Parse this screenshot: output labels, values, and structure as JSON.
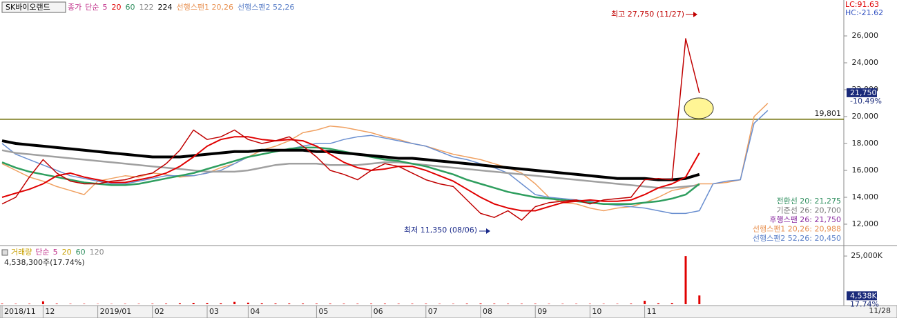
{
  "chart_data": [
    {
      "type": "line",
      "stock_name": "SK바이오랜드",
      "legend_prefix": "단순",
      "legend_extra_ma": "5",
      "categories": [
        "2018/11",
        null,
        null,
        "12",
        null,
        null,
        null,
        "2019/01",
        null,
        null,
        null,
        "02",
        null,
        null,
        null,
        "03",
        null,
        null,
        "04",
        null,
        null,
        null,
        null,
        "05",
        null,
        null,
        null,
        "06",
        null,
        null,
        null,
        "07",
        null,
        null,
        null,
        "08",
        null,
        null,
        null,
        "09",
        null,
        null,
        null,
        "10",
        null,
        null,
        null,
        "11",
        null,
        null,
        null,
        null,
        null,
        null,
        null,
        null,
        null
      ],
      "series": [
        {
          "name": "종가",
          "color": "#c00000",
          "values": [
            13500,
            14000,
            15500,
            16800,
            15800,
            15200,
            15000,
            15000,
            15200,
            15300,
            15600,
            15800,
            16500,
            17500,
            19000,
            18300,
            18500,
            19000,
            18300,
            18000,
            18200,
            18500,
            17800,
            17000,
            16000,
            15700,
            15300,
            16000,
            16500,
            16300,
            15800,
            15300,
            15000,
            14800,
            13800,
            12800,
            12500,
            13000,
            12300,
            13300,
            13600,
            13700,
            13800,
            13500,
            13800,
            13900,
            14000,
            15300,
            15400,
            15300,
            25800,
            21750,
            null,
            null,
            null,
            null,
            null
          ]
        },
        {
          "name": "20",
          "color": "#e00000",
          "values": [
            14000,
            14300,
            14600,
            15000,
            15600,
            15800,
            15500,
            15300,
            15100,
            15100,
            15300,
            15500,
            15800,
            16300,
            17000,
            17800,
            18300,
            18500,
            18500,
            18300,
            18200,
            18300,
            18200,
            17800,
            17200,
            16600,
            16200,
            16000,
            16100,
            16300,
            16300,
            16000,
            15600,
            15200,
            14600,
            14000,
            13500,
            13200,
            13000,
            13000,
            13300,
            13600,
            13700,
            13800,
            13700,
            13700,
            13800,
            14200,
            14700,
            15000,
            15500,
            17300,
            null,
            null,
            null,
            null,
            null
          ]
        },
        {
          "name": "60",
          "color": "#2e9e5e",
          "values": [
            16600,
            16200,
            15900,
            15700,
            15500,
            15300,
            15100,
            15000,
            14900,
            14900,
            15000,
            15200,
            15400,
            15600,
            15800,
            16100,
            16400,
            16700,
            17000,
            17200,
            17400,
            17600,
            17700,
            17700,
            17600,
            17400,
            17200,
            17000,
            16800,
            16700,
            16500,
            16300,
            16000,
            15700,
            15300,
            15000,
            14700,
            14400,
            14200,
            14000,
            13900,
            13800,
            13700,
            13600,
            13500,
            13500,
            13500,
            13600,
            13700,
            13900,
            14200,
            15000,
            null,
            null,
            null,
            null,
            null
          ]
        },
        {
          "name": "122",
          "color": "#a0a0a0",
          "values": [
            17500,
            17300,
            17200,
            17100,
            17000,
            16900,
            16800,
            16700,
            16600,
            16500,
            16400,
            16300,
            16200,
            16100,
            16000,
            15900,
            15900,
            15900,
            16000,
            16200,
            16400,
            16500,
            16500,
            16500,
            16400,
            16400,
            16400,
            16500,
            16600,
            16600,
            16500,
            16400,
            16300,
            16200,
            16100,
            16000,
            15900,
            15800,
            15700,
            15600,
            15500,
            15400,
            15300,
            15200,
            15100,
            15000,
            14900,
            14800,
            14700,
            14700,
            14800,
            14900,
            null,
            null,
            null,
            null,
            null
          ]
        },
        {
          "name": "224",
          "color": "#000000",
          "values": [
            18200,
            18000,
            17900,
            17800,
            17700,
            17600,
            17500,
            17400,
            17300,
            17200,
            17100,
            17000,
            17000,
            17000,
            17100,
            17200,
            17300,
            17400,
            17400,
            17500,
            17500,
            17500,
            17500,
            17400,
            17400,
            17300,
            17200,
            17100,
            17000,
            16900,
            16900,
            16800,
            16700,
            16600,
            16500,
            16400,
            16300,
            16200,
            16100,
            16000,
            15900,
            15800,
            15700,
            15600,
            15500,
            15400,
            15400,
            15400,
            15300,
            15300,
            15400,
            15700,
            null,
            null,
            null,
            null,
            null
          ]
        },
        {
          "name": "선행스팬1 20,26",
          "color": "#f0a060",
          "values": [
            16500,
            16000,
            15500,
            15200,
            14800,
            14500,
            14200,
            15200,
            15400,
            15600,
            15500,
            15800,
            15700,
            15500,
            15600,
            15800,
            16200,
            16500,
            17000,
            17500,
            17800,
            18200,
            18800,
            19000,
            19300,
            19200,
            19000,
            18800,
            18500,
            18300,
            18000,
            17800,
            17500,
            17200,
            17000,
            16800,
            16500,
            16200,
            15800,
            15000,
            14000,
            13600,
            13500,
            13200,
            13000,
            13200,
            13300,
            13600,
            14000,
            14500,
            14700,
            15000,
            15000,
            15100,
            15300,
            20000,
            20988
          ]
        },
        {
          "name": "선행스팬2 52,26",
          "color": "#6a8fd0",
          "values": [
            18000,
            17200,
            16800,
            16400,
            16000,
            15600,
            15400,
            15200,
            15000,
            15000,
            15200,
            15400,
            15600,
            15600,
            15600,
            15800,
            16000,
            16500,
            17000,
            17200,
            17400,
            17600,
            17800,
            18000,
            18000,
            18300,
            18500,
            18600,
            18400,
            18200,
            18000,
            17800,
            17400,
            17000,
            16800,
            16500,
            16200,
            15800,
            15000,
            14200,
            14000,
            13900,
            13800,
            13700,
            13500,
            13400,
            13300,
            13200,
            13000,
            12800,
            12800,
            13000,
            15000,
            15200,
            15300,
            19500,
            20450
          ]
        }
      ],
      "ylim": [
        10460,
        28670
      ],
      "yticks": [
        {
          "value": 12000,
          "label": "12,000"
        },
        {
          "value": 14000,
          "label": "14,000"
        },
        {
          "value": 16000,
          "label": "16,000"
        },
        {
          "value": 18000,
          "label": "18,000"
        },
        {
          "value": 20000,
          "label": "20,000"
        },
        {
          "value": 22000,
          "label": "22,000"
        },
        {
          "value": 24000,
          "label": "24,000"
        },
        {
          "value": 26000,
          "label": "26,000"
        }
      ],
      "lc_label": "LC:91.63",
      "hc_label": "HC:-21.62",
      "current_price": {
        "value": 21750,
        "label": "21,750"
      },
      "change_label": "-10.49%",
      "reference_line": {
        "value": 19801,
        "label": "19,801"
      },
      "annotations": [
        "최고 27,750 (11/27)",
        "최저 11,350 (08/06)"
      ],
      "ichimoku_labels": [
        {
          "text": "전환선 20: 21,275",
          "color": "#2e8e5e"
        },
        {
          "text": "기준선 26: 20,700",
          "color": "#777777"
        },
        {
          "text": "후행스팬 26: 21,750",
          "color": "#8a2aa0"
        },
        {
          "text": "선행스팬1 20,26: 20,988",
          "color": "#e89050"
        },
        {
          "text": "선행스팬2 52,26: 20,450",
          "color": "#5a7fc8"
        }
      ],
      "end_date": "11/28"
    },
    {
      "type": "bar",
      "title": "거래량",
      "legend_prefix": "단순",
      "ma_labels": [
        "5",
        "20",
        "60",
        "120"
      ],
      "summary": "4,538,300주(17.74%)",
      "color": "#e00000",
      "values": [
        300,
        200,
        250,
        1500,
        300,
        200,
        200,
        150,
        150,
        200,
        200,
        250,
        300,
        500,
        700,
        600,
        500,
        1200,
        800,
        500,
        400,
        400,
        350,
        300,
        300,
        250,
        250,
        300,
        300,
        250,
        250,
        250,
        200,
        200,
        300,
        400,
        300,
        250,
        250,
        250,
        200,
        200,
        200,
        200,
        200,
        200,
        300,
        1800,
        500,
        600,
        25000,
        4538,
        null,
        null,
        null,
        null,
        null
      ],
      "ylim": [
        0,
        29700
      ],
      "yticks": [
        {
          "value": 25000,
          "label": "25,000K"
        }
      ],
      "current": {
        "value": 4538,
        "label": "4,538K"
      },
      "ratio_label": "17.74%"
    }
  ]
}
